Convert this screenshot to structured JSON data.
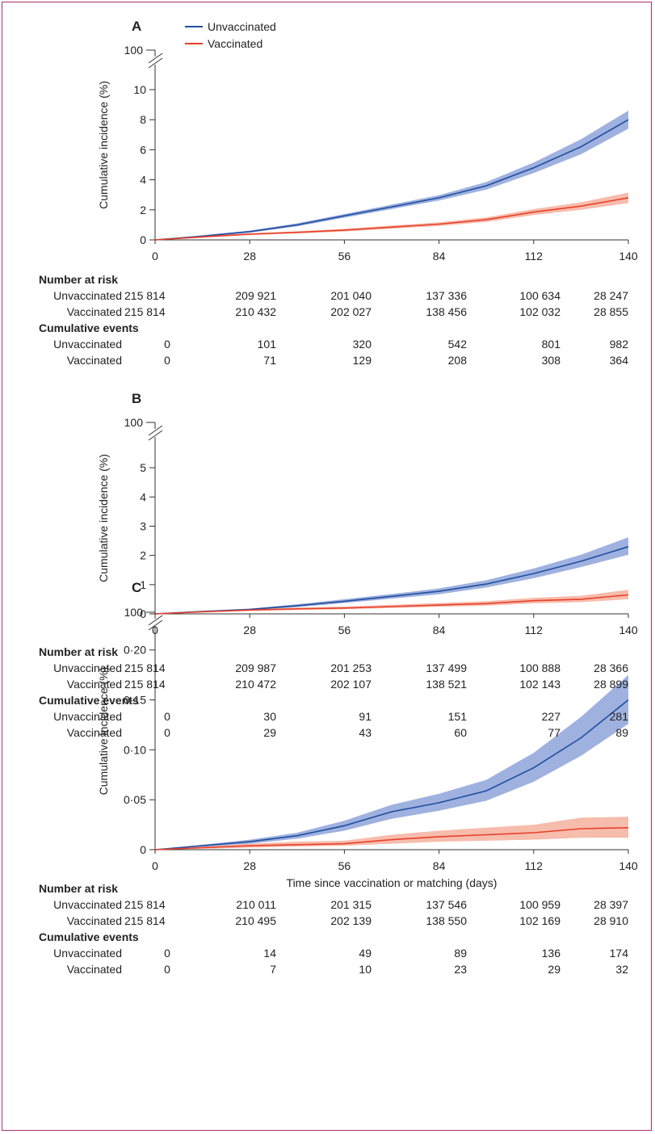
{
  "legend": {
    "unvaccinated": "Unvaccinated",
    "vaccinated": "Vaccinated"
  },
  "colors": {
    "unvaccinated": "#1f4e9e",
    "unvaccinated_ci": "#8ea3d9",
    "vaccinated": "#e8402a",
    "vaccinated_ci": "#f5b09e"
  },
  "xlabel": "Time since vaccination or matching (days)",
  "ylabel": "Cumulative incidence (%)",
  "table_headers": {
    "risk": "Number at risk",
    "events": "Cumulative events"
  },
  "row_labels": {
    "unvaccinated": "Unvaccinated",
    "vaccinated": "Vaccinated"
  },
  "chart_data": [
    {
      "type": "line",
      "title": "A",
      "x_ticks": [
        "0",
        "28",
        "56",
        "84",
        "112",
        "140"
      ],
      "y_ticks": [
        "0",
        "2",
        "4",
        "6",
        "8",
        "10"
      ],
      "y_break_tick": "100",
      "ylim": [
        0,
        10
      ],
      "xlim": [
        0,
        140
      ],
      "x": [
        0,
        14,
        28,
        42,
        56,
        70,
        84,
        98,
        112,
        126,
        140
      ],
      "series": [
        {
          "name": "Unvaccinated",
          "values": [
            0,
            0.25,
            0.55,
            1.0,
            1.6,
            2.2,
            2.8,
            3.6,
            4.8,
            6.2,
            8.0
          ],
          "lower": [
            0,
            0.2,
            0.48,
            0.9,
            1.48,
            2.05,
            2.62,
            3.35,
            4.45,
            5.7,
            7.4
          ],
          "upper": [
            0,
            0.3,
            0.62,
            1.1,
            1.72,
            2.35,
            2.98,
            3.85,
            5.15,
            6.7,
            8.6
          ]
        },
        {
          "name": "Vaccinated",
          "values": [
            0,
            0.2,
            0.38,
            0.5,
            0.65,
            0.85,
            1.05,
            1.35,
            1.85,
            2.25,
            2.8
          ],
          "lower": [
            0,
            0.15,
            0.32,
            0.43,
            0.56,
            0.75,
            0.93,
            1.2,
            1.65,
            2.0,
            2.45
          ],
          "upper": [
            0,
            0.25,
            0.44,
            0.57,
            0.74,
            0.95,
            1.17,
            1.5,
            2.05,
            2.5,
            3.15
          ]
        }
      ],
      "table": {
        "risk_unvaccinated": [
          "215 814",
          "209 921",
          "201 040",
          "137 336",
          "100 634",
          "28 247"
        ],
        "risk_vaccinated": [
          "215 814",
          "210 432",
          "202 027",
          "138 456",
          "102 032",
          "28 855"
        ],
        "events_unvaccinated": [
          "0",
          "101",
          "320",
          "542",
          "801",
          "982"
        ],
        "events_vaccinated": [
          "0",
          "71",
          "129",
          "208",
          "308",
          "364"
        ]
      }
    },
    {
      "type": "line",
      "title": "B",
      "x_ticks": [
        "0",
        "28",
        "56",
        "84",
        "112",
        "140"
      ],
      "y_ticks": [
        "0",
        "1",
        "2",
        "3",
        "4",
        "5"
      ],
      "y_break_tick": "100",
      "ylim": [
        0,
        5.5
      ],
      "xlim": [
        0,
        140
      ],
      "x": [
        0,
        14,
        28,
        42,
        56,
        70,
        84,
        98,
        112,
        126,
        140
      ],
      "series": [
        {
          "name": "Unvaccinated",
          "values": [
            0,
            0.08,
            0.15,
            0.28,
            0.43,
            0.6,
            0.77,
            1.02,
            1.38,
            1.8,
            2.3
          ],
          "lower": [
            0,
            0.06,
            0.12,
            0.23,
            0.37,
            0.52,
            0.67,
            0.9,
            1.22,
            1.6,
            2.02
          ],
          "upper": [
            0,
            0.1,
            0.18,
            0.33,
            0.5,
            0.68,
            0.87,
            1.15,
            1.55,
            2.02,
            2.62
          ]
        },
        {
          "name": "Vaccinated",
          "values": [
            0,
            0.07,
            0.13,
            0.17,
            0.2,
            0.25,
            0.3,
            0.35,
            0.45,
            0.5,
            0.65
          ],
          "lower": [
            0,
            0.05,
            0.1,
            0.13,
            0.16,
            0.2,
            0.24,
            0.28,
            0.36,
            0.4,
            0.5
          ],
          "upper": [
            0,
            0.09,
            0.16,
            0.21,
            0.25,
            0.31,
            0.37,
            0.43,
            0.55,
            0.62,
            0.82
          ]
        }
      ],
      "table": {
        "risk_unvaccinated": [
          "215 814",
          "209 987",
          "201 253",
          "137 499",
          "100 888",
          "28 366"
        ],
        "risk_vaccinated": [
          "215 814",
          "210 472",
          "202 107",
          "138 521",
          "102 143",
          "28 899"
        ],
        "events_unvaccinated": [
          "0",
          "30",
          "91",
          "151",
          "227",
          "281"
        ],
        "events_vaccinated": [
          "0",
          "29",
          "43",
          "60",
          "77",
          "89"
        ]
      }
    },
    {
      "type": "line",
      "title": "C",
      "x_ticks": [
        "0",
        "28",
        "56",
        "84",
        "112",
        "140"
      ],
      "y_ticks": [
        "0",
        "0·05",
        "0·10",
        "0·15",
        "0·20"
      ],
      "y_break_tick": "100",
      "ylim": [
        0,
        0.22
      ],
      "xlim": [
        0,
        140
      ],
      "x": [
        0,
        14,
        28,
        42,
        56,
        70,
        84,
        98,
        112,
        126,
        140
      ],
      "series": [
        {
          "name": "Unvaccinated",
          "values": [
            0,
            0.004,
            0.008,
            0.014,
            0.024,
            0.038,
            0.047,
            0.059,
            0.082,
            0.112,
            0.15
          ],
          "lower": [
            0,
            0.003,
            0.006,
            0.011,
            0.019,
            0.031,
            0.039,
            0.049,
            0.068,
            0.094,
            0.126
          ],
          "upper": [
            0,
            0.005,
            0.01,
            0.017,
            0.029,
            0.045,
            0.056,
            0.07,
            0.097,
            0.133,
            0.175
          ]
        },
        {
          "name": "Vaccinated",
          "values": [
            0,
            0.002,
            0.004,
            0.005,
            0.006,
            0.01,
            0.013,
            0.015,
            0.017,
            0.021,
            0.022
          ],
          "lower": [
            0,
            0.001,
            0.002,
            0.003,
            0.004,
            0.006,
            0.008,
            0.009,
            0.01,
            0.012,
            0.012
          ],
          "upper": [
            0,
            0.003,
            0.006,
            0.008,
            0.009,
            0.015,
            0.019,
            0.022,
            0.025,
            0.032,
            0.033
          ]
        }
      ],
      "table": {
        "risk_unvaccinated": [
          "215 814",
          "210 011",
          "201 315",
          "137 546",
          "100 959",
          "28 397"
        ],
        "risk_vaccinated": [
          "215 814",
          "210 495",
          "202 139",
          "138 550",
          "102 169",
          "28 910"
        ],
        "events_unvaccinated": [
          "0",
          "14",
          "49",
          "89",
          "136",
          "174"
        ],
        "events_vaccinated": [
          "0",
          "7",
          "10",
          "23",
          "29",
          "32"
        ]
      }
    }
  ]
}
